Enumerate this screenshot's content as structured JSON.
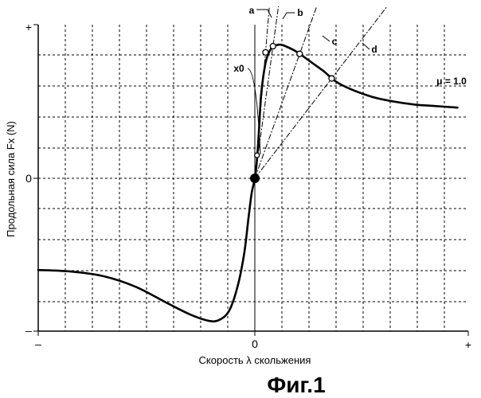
{
  "chart_data": {
    "type": "line",
    "title": "",
    "caption": "Фиг.1",
    "xlabel": "Скорость λ скольжения",
    "ylabel": "Продольная сила Fx (N)",
    "x_ticks": {
      "min": "–",
      "zero": "0",
      "max": "+"
    },
    "y_ticks": {
      "max": "+",
      "zero": "0",
      "min": "–"
    },
    "xlim": [
      -1,
      1
    ],
    "ylim": [
      -1,
      1
    ],
    "grid": true,
    "series": [
      {
        "name": "μ = 1.0",
        "x": [
          -1.0,
          -0.85,
          -0.7,
          -0.55,
          -0.4,
          -0.3,
          -0.22,
          -0.17,
          -0.12,
          -0.08,
          -0.05,
          -0.03,
          -0.015,
          0.0,
          0.01,
          0.02,
          0.03,
          0.05,
          0.07,
          0.09,
          0.12,
          0.16,
          0.2,
          0.26,
          0.32,
          0.38,
          0.45,
          0.55,
          0.65,
          0.75,
          0.85,
          0.95
        ],
        "y": [
          -0.6,
          -0.61,
          -0.64,
          -0.71,
          -0.82,
          -0.89,
          -0.93,
          -0.93,
          -0.87,
          -0.71,
          -0.5,
          -0.27,
          -0.1,
          0.0,
          0.12,
          0.33,
          0.55,
          0.75,
          0.83,
          0.86,
          0.87,
          0.85,
          0.82,
          0.76,
          0.7,
          0.63,
          0.58,
          0.53,
          0.5,
          0.48,
          0.47,
          0.46
        ]
      }
    ],
    "annotations": {
      "curve_label": "μ = 1.0",
      "x0_label": "x0",
      "origin_point": {
        "x": 0.0,
        "y": 0.0
      },
      "x0_point": {
        "x": 0.01,
        "y": 0.15
      },
      "lines": [
        {
          "label": "a",
          "through": {
            "x": 0.05,
            "y": 0.82
          }
        },
        {
          "label": "b",
          "through": {
            "x": 0.085,
            "y": 0.86
          }
        },
        {
          "label": "c",
          "through": {
            "x": 0.21,
            "y": 0.81
          }
        },
        {
          "label": "d",
          "through": {
            "x": 0.36,
            "y": 0.65
          }
        }
      ]
    }
  }
}
